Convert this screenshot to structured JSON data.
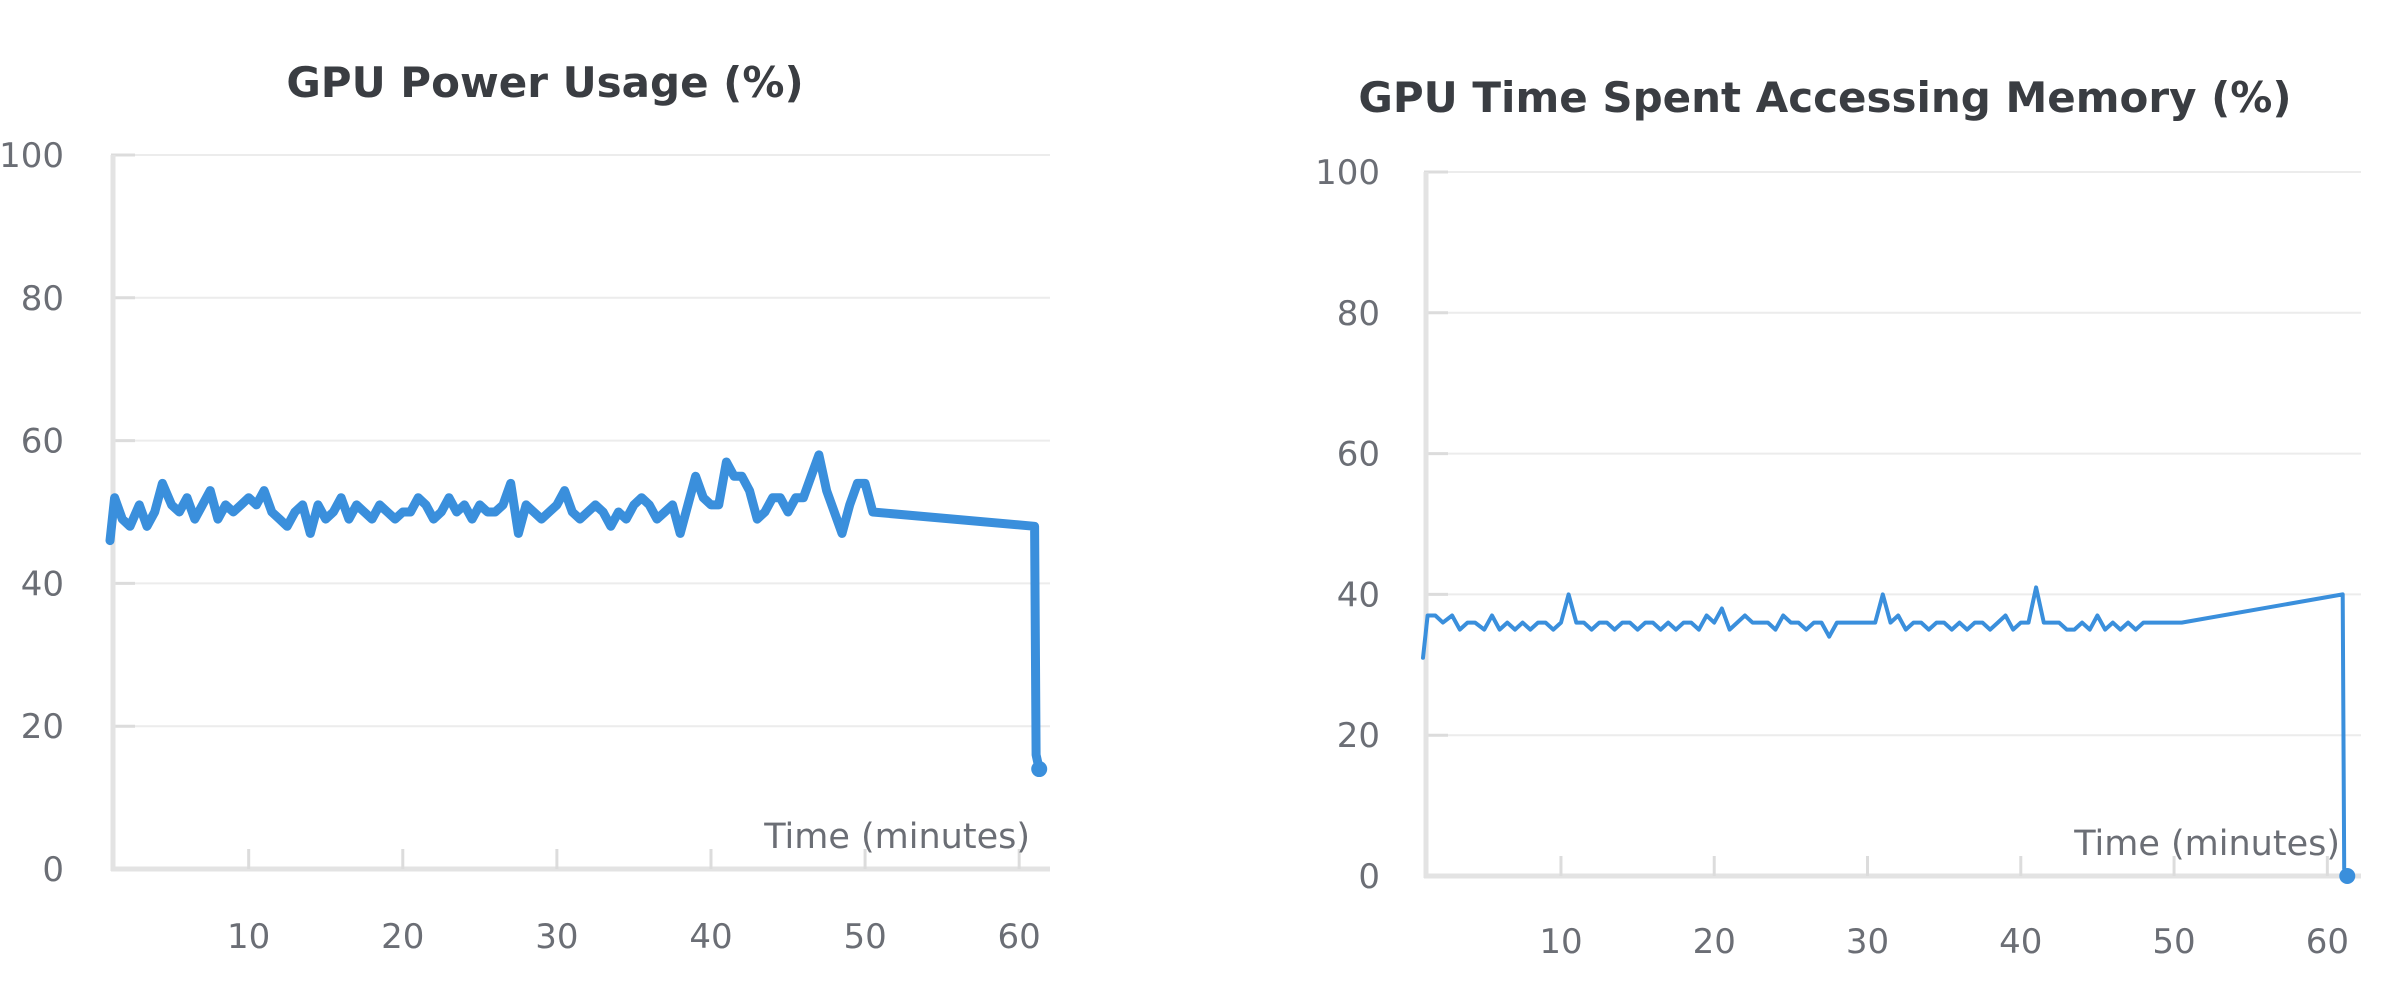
{
  "colors": {
    "series": "#3a8fdc",
    "title": "#3a3d42",
    "ticks": "#6b6e75",
    "grid": "#ececec",
    "axis": "#e3e3e3"
  },
  "chart_data": [
    {
      "type": "line",
      "title": "GPU Power Usage (%)",
      "xlabel": "Time (minutes)",
      "ylabel": "",
      "xlim": [
        1,
        62
      ],
      "ylim": [
        0,
        100
      ],
      "x_ticks": [
        10,
        20,
        30,
        40,
        50,
        60
      ],
      "y_ticks": [
        0,
        20,
        40,
        60,
        80,
        100
      ],
      "grid": true,
      "legend": "none",
      "series": [
        {
          "x": [
            1.0,
            1.3,
            1.8,
            2.3,
            2.9,
            3.4,
            3.9,
            4.4,
            5.0,
            5.5,
            6.0,
            6.5,
            7.0,
            7.5,
            8.0,
            8.5,
            9.0,
            9.5,
            10.0,
            10.5,
            11.0,
            11.5,
            12.0,
            12.5,
            13.0,
            13.5,
            14.0,
            14.5,
            15.0,
            15.5,
            16.0,
            16.5,
            17.0,
            17.5,
            18.0,
            18.5,
            19.0,
            19.5,
            20.0,
            20.5,
            21.0,
            21.5,
            22.0,
            22.5,
            23.0,
            23.5,
            24.0,
            24.5,
            25.0,
            25.5,
            26.0,
            26.5,
            27.0,
            27.5,
            28.0,
            28.5,
            29.0,
            29.5,
            30.0,
            30.5,
            31.0,
            31.5,
            32.0,
            32.5,
            33.0,
            33.5,
            34.0,
            34.5,
            35.0,
            35.5,
            36.0,
            36.5,
            37.0,
            37.5,
            38.0,
            38.5,
            39.0,
            39.5,
            40.0,
            40.5,
            41.0,
            41.5,
            42.0,
            42.5,
            43.0,
            43.5,
            44.0,
            44.5,
            45.0,
            45.5,
            46.0,
            46.5,
            47.0,
            47.5,
            48.0,
            48.5,
            49.0,
            49.5,
            50.0,
            50.5,
            61.0,
            61.1,
            61.3
          ],
          "values": [
            46,
            52,
            49,
            48,
            51,
            48,
            50,
            54,
            51,
            50,
            52,
            49,
            51,
            53,
            49,
            51,
            50,
            51,
            52,
            51,
            53,
            50,
            49,
            48,
            50,
            51,
            47,
            51,
            49,
            50,
            52,
            49,
            51,
            50,
            49,
            51,
            50,
            49,
            50,
            50,
            52,
            51,
            49,
            50,
            52,
            50,
            51,
            49,
            51,
            50,
            50,
            51,
            54,
            47,
            51,
            50,
            49,
            50,
            51,
            53,
            50,
            49,
            50,
            51,
            50,
            48,
            50,
            49,
            51,
            52,
            51,
            49,
            50,
            51,
            47,
            51,
            55,
            52,
            51,
            51,
            57,
            55,
            55,
            53,
            49,
            50,
            52,
            52,
            50,
            52,
            52,
            55,
            58,
            53,
            50,
            47,
            51,
            54,
            54,
            50,
            48,
            16,
            14
          ]
        }
      ]
    },
    {
      "type": "line",
      "title": "GPU Time Spent Accessing Memory (%)",
      "xlabel": "Time (minutes)",
      "ylabel": "",
      "xlim": [
        1,
        62
      ],
      "ylim": [
        0,
        100
      ],
      "x_ticks": [
        10,
        20,
        30,
        40,
        50,
        60
      ],
      "y_ticks": [
        0,
        20,
        40,
        60,
        80,
        100
      ],
      "grid": true,
      "legend": "none",
      "series": [
        {
          "x": [
            1.0,
            1.3,
            1.8,
            2.3,
            2.9,
            3.4,
            3.9,
            4.4,
            5.0,
            5.5,
            6.0,
            6.5,
            7.0,
            7.5,
            8.0,
            8.5,
            9.0,
            9.5,
            10.0,
            10.5,
            11.0,
            11.5,
            12.0,
            12.5,
            13.0,
            13.5,
            14.0,
            14.5,
            15.0,
            15.5,
            16.0,
            16.5,
            17.0,
            17.5,
            18.0,
            18.5,
            19.0,
            19.5,
            20.0,
            20.5,
            21.0,
            21.5,
            22.0,
            22.5,
            23.0,
            23.5,
            24.0,
            24.5,
            25.0,
            25.5,
            26.0,
            26.5,
            27.0,
            27.5,
            28.0,
            28.5,
            29.0,
            29.5,
            30.0,
            30.5,
            31.0,
            31.5,
            32.0,
            32.5,
            33.0,
            33.5,
            34.0,
            34.5,
            35.0,
            35.5,
            36.0,
            36.5,
            37.0,
            37.5,
            38.0,
            38.5,
            39.0,
            39.5,
            40.0,
            40.5,
            41.0,
            41.5,
            42.0,
            42.5,
            43.0,
            43.5,
            44.0,
            44.5,
            45.0,
            45.5,
            46.0,
            46.5,
            47.0,
            47.5,
            48.0,
            48.5,
            49.0,
            49.5,
            50.0,
            50.5,
            61.0,
            61.1,
            61.3
          ],
          "values": [
            31,
            37,
            37,
            36,
            37,
            35,
            36,
            36,
            35,
            37,
            35,
            36,
            35,
            36,
            35,
            36,
            36,
            35,
            36,
            40,
            36,
            36,
            35,
            36,
            36,
            35,
            36,
            36,
            35,
            36,
            36,
            35,
            36,
            35,
            36,
            36,
            35,
            37,
            36,
            38,
            35,
            36,
            37,
            36,
            36,
            36,
            35,
            37,
            36,
            36,
            35,
            36,
            36,
            34,
            36,
            36,
            36,
            36,
            36,
            36,
            40,
            36,
            37,
            35,
            36,
            36,
            35,
            36,
            36,
            35,
            36,
            35,
            36,
            36,
            35,
            36,
            37,
            35,
            36,
            36,
            41,
            36,
            36,
            36,
            35,
            35,
            36,
            35,
            37,
            35,
            36,
            35,
            36,
            35,
            36,
            36,
            36,
            36,
            36,
            36,
            40,
            1,
            0
          ]
        }
      ]
    }
  ]
}
